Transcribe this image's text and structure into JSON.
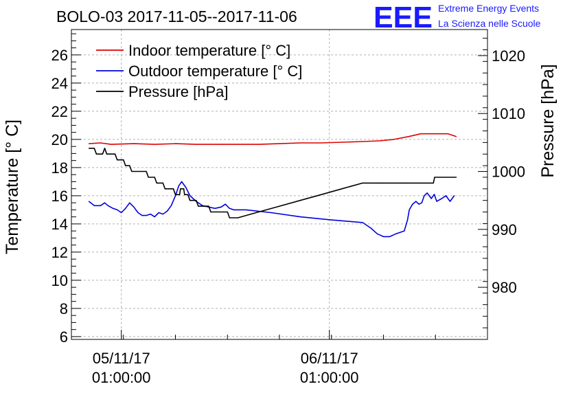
{
  "chart_data": {
    "type": "line",
    "title": "BOLO-03 2017-11-05--2017-11-06",
    "logo": {
      "letters": "EEE",
      "line1": "Extreme Energy Events",
      "line2": "La Scienza nelle Scuole",
      "color": "#1a1aff"
    },
    "ylabel": "Temperature [° C]",
    "y2label": "Pressure [hPa]",
    "ylim": [
      5.8,
      27.8
    ],
    "y2lim": [
      971.0,
      1024.5
    ],
    "xlim": [
      0,
      1000
    ],
    "yticks": [
      6,
      8,
      10,
      12,
      14,
      16,
      18,
      20,
      22,
      24,
      26
    ],
    "y2ticks": [
      980,
      990,
      1000,
      1010,
      1020
    ],
    "xticks": [
      {
        "x": 120,
        "line1": "05/11/17",
        "line2": "01:00:00"
      },
      {
        "x": 620,
        "line1": "06/11/17",
        "line2": "01:00:00"
      }
    ],
    "grid": true,
    "legend_position": "top-left",
    "legend": [
      {
        "name": "Indoor temperature [° C]",
        "color": "#dd0000"
      },
      {
        "name": "Outdoor temperature [° C]",
        "color": "#0000dd"
      },
      {
        "name": "Pressure [hPa]",
        "color": "#000000"
      }
    ],
    "series": [
      {
        "name": "Indoor temperature [° C]",
        "axis": "left",
        "color": "#dd0000",
        "points": [
          [
            42,
            19.7
          ],
          [
            70,
            19.75
          ],
          [
            95,
            19.65
          ],
          [
            150,
            19.7
          ],
          [
            200,
            19.65
          ],
          [
            250,
            19.7
          ],
          [
            300,
            19.65
          ],
          [
            350,
            19.65
          ],
          [
            400,
            19.65
          ],
          [
            450,
            19.65
          ],
          [
            500,
            19.7
          ],
          [
            550,
            19.75
          ],
          [
            600,
            19.75
          ],
          [
            650,
            19.8
          ],
          [
            700,
            19.85
          ],
          [
            740,
            19.9
          ],
          [
            775,
            20.0
          ],
          [
            810,
            20.2
          ],
          [
            840,
            20.4
          ],
          [
            870,
            20.4
          ],
          [
            905,
            20.4
          ],
          [
            925,
            20.2
          ]
        ]
      },
      {
        "name": "Outdoor temperature [° C]",
        "axis": "left",
        "color": "#0000dd",
        "points": [
          [
            42,
            15.6
          ],
          [
            55,
            15.3
          ],
          [
            70,
            15.3
          ],
          [
            80,
            15.5
          ],
          [
            88,
            15.3
          ],
          [
            100,
            15.1
          ],
          [
            110,
            15.0
          ],
          [
            120,
            14.8
          ],
          [
            130,
            15.1
          ],
          [
            140,
            15.5
          ],
          [
            150,
            15.2
          ],
          [
            160,
            14.8
          ],
          [
            170,
            14.6
          ],
          [
            180,
            14.6
          ],
          [
            190,
            14.7
          ],
          [
            200,
            14.5
          ],
          [
            210,
            14.8
          ],
          [
            220,
            14.7
          ],
          [
            230,
            14.9
          ],
          [
            240,
            15.3
          ],
          [
            250,
            16.0
          ],
          [
            258,
            16.7
          ],
          [
            265,
            17.0
          ],
          [
            275,
            16.6
          ],
          [
            285,
            16.0
          ],
          [
            300,
            15.6
          ],
          [
            315,
            15.3
          ],
          [
            330,
            15.2
          ],
          [
            345,
            15.1
          ],
          [
            360,
            15.2
          ],
          [
            370,
            15.4
          ],
          [
            380,
            15.1
          ],
          [
            390,
            15.0
          ],
          [
            400,
            15.0
          ],
          [
            420,
            15.0
          ],
          [
            480,
            14.8
          ],
          [
            550,
            14.5
          ],
          [
            620,
            14.3
          ],
          [
            700,
            14.1
          ],
          [
            720,
            13.7
          ],
          [
            735,
            13.3
          ],
          [
            750,
            13.1
          ],
          [
            765,
            13.1
          ],
          [
            780,
            13.3
          ],
          [
            790,
            13.4
          ],
          [
            800,
            13.5
          ],
          [
            808,
            14.3
          ],
          [
            812,
            15.0
          ],
          [
            820,
            15.4
          ],
          [
            828,
            15.6
          ],
          [
            835,
            15.4
          ],
          [
            842,
            15.5
          ],
          [
            848,
            16.0
          ],
          [
            855,
            16.2
          ],
          [
            865,
            15.8
          ],
          [
            872,
            16.1
          ],
          [
            878,
            15.6
          ],
          [
            890,
            15.8
          ],
          [
            900,
            16.0
          ],
          [
            910,
            15.6
          ],
          [
            920,
            16.0
          ]
        ]
      },
      {
        "name": "Pressure [hPa]",
        "axis": "right",
        "color": "#000000",
        "points": [
          [
            42,
            1004.0
          ],
          [
            55,
            1004.0
          ],
          [
            60,
            1003.0
          ],
          [
            75,
            1003.0
          ],
          [
            80,
            1004.0
          ],
          [
            85,
            1003.0
          ],
          [
            105,
            1003.0
          ],
          [
            110,
            1002.0
          ],
          [
            125,
            1002.0
          ],
          [
            130,
            1001.0
          ],
          [
            140,
            1001.0
          ],
          [
            145,
            1000.0
          ],
          [
            180,
            1000.0
          ],
          [
            185,
            999.0
          ],
          [
            200,
            999.0
          ],
          [
            205,
            998.0
          ],
          [
            220,
            998.0
          ],
          [
            225,
            997.0
          ],
          [
            245,
            997.0
          ],
          [
            250,
            996.0
          ],
          [
            260,
            996.0
          ],
          [
            262,
            997.0
          ],
          [
            270,
            997.0
          ],
          [
            272,
            996.0
          ],
          [
            280,
            996.0
          ],
          [
            285,
            995.0
          ],
          [
            300,
            995.0
          ],
          [
            305,
            994.0
          ],
          [
            330,
            994.0
          ],
          [
            335,
            993.0
          ],
          [
            375,
            993.0
          ],
          [
            380,
            992.0
          ],
          [
            400,
            992.0
          ],
          [
            450,
            993.0
          ],
          [
            500,
            994.0
          ],
          [
            550,
            995.0
          ],
          [
            600,
            996.0
          ],
          [
            650,
            997.0
          ],
          [
            700,
            998.0
          ],
          [
            740,
            998.0
          ],
          [
            800,
            998.0
          ],
          [
            870,
            998.0
          ],
          [
            873,
            999.0
          ],
          [
            925,
            999.0
          ]
        ]
      }
    ]
  }
}
